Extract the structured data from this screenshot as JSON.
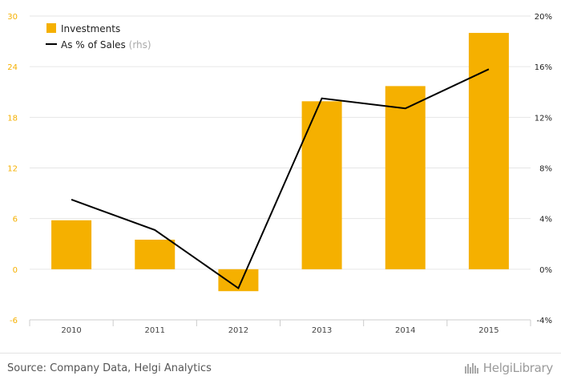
{
  "chart_data": {
    "type": "bar",
    "categories": [
      "2010",
      "2011",
      "2012",
      "2013",
      "2014",
      "2015"
    ],
    "series": [
      {
        "name": "Investments",
        "type": "bar",
        "axis": "left",
        "color": "#f5b000",
        "values": [
          5.8,
          3.5,
          -2.6,
          19.9,
          21.7,
          28.0
        ]
      },
      {
        "name": "As % of Sales",
        "type": "line",
        "axis": "right",
        "color": "#000000",
        "values": [
          5.5,
          3.1,
          -1.5,
          13.5,
          12.7,
          15.8
        ]
      }
    ],
    "ylim_left": [
      -6,
      30
    ],
    "yticks_left": [
      "30",
      "24",
      "18",
      "12",
      "6",
      "0",
      "-6"
    ],
    "ylim_right": [
      -4,
      20
    ],
    "yticks_right": [
      "20%",
      "16%",
      "12%",
      "8%",
      "4%",
      "0%",
      "-4%"
    ],
    "grid": true,
    "legend": {
      "position": "top-left",
      "items": [
        {
          "label": "Investments"
        },
        {
          "label": "As % of Sales",
          "suffix": "(rhs)"
        }
      ]
    },
    "colors": {
      "bar": "#f5b000",
      "line": "#000000",
      "left_tick": "#f5b000",
      "grid": "#e6e6e6"
    }
  },
  "footer": {
    "source": "Source: Company Data, Helgi Analytics",
    "logo": "HelgiLibrary"
  }
}
